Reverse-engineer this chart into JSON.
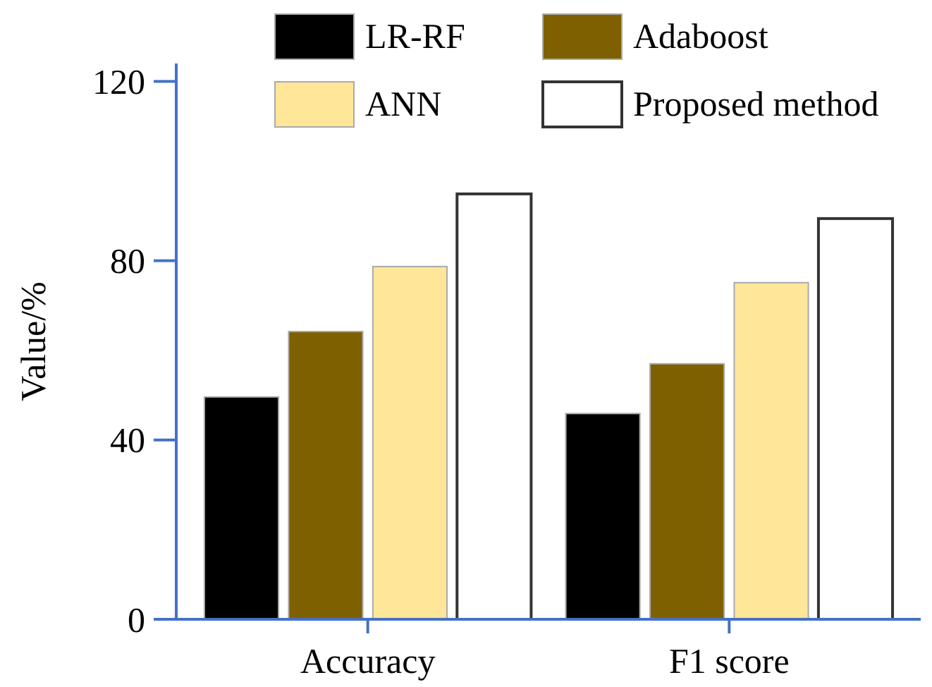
{
  "chart_data": {
    "type": "bar",
    "ylabel": "Value/%",
    "categories": [
      "Accuracy",
      "F1 score"
    ],
    "series": [
      {
        "name": "LR-RF",
        "color": "#000000",
        "values": [
          49.6,
          45.9
        ]
      },
      {
        "name": "Adaboost",
        "color": "#7f6000",
        "values": [
          64.2,
          57
        ]
      },
      {
        "name": "ANN",
        "color": "#ffe699",
        "values": [
          78.7,
          75.1
        ]
      },
      {
        "name": "Proposed method",
        "color": "#ffffff",
        "values": [
          94.9,
          89.4
        ]
      }
    ],
    "ylim": [
      0,
      124
    ],
    "yticks": [
      0,
      40,
      80,
      120
    ],
    "grid": false,
    "legend": "top"
  }
}
